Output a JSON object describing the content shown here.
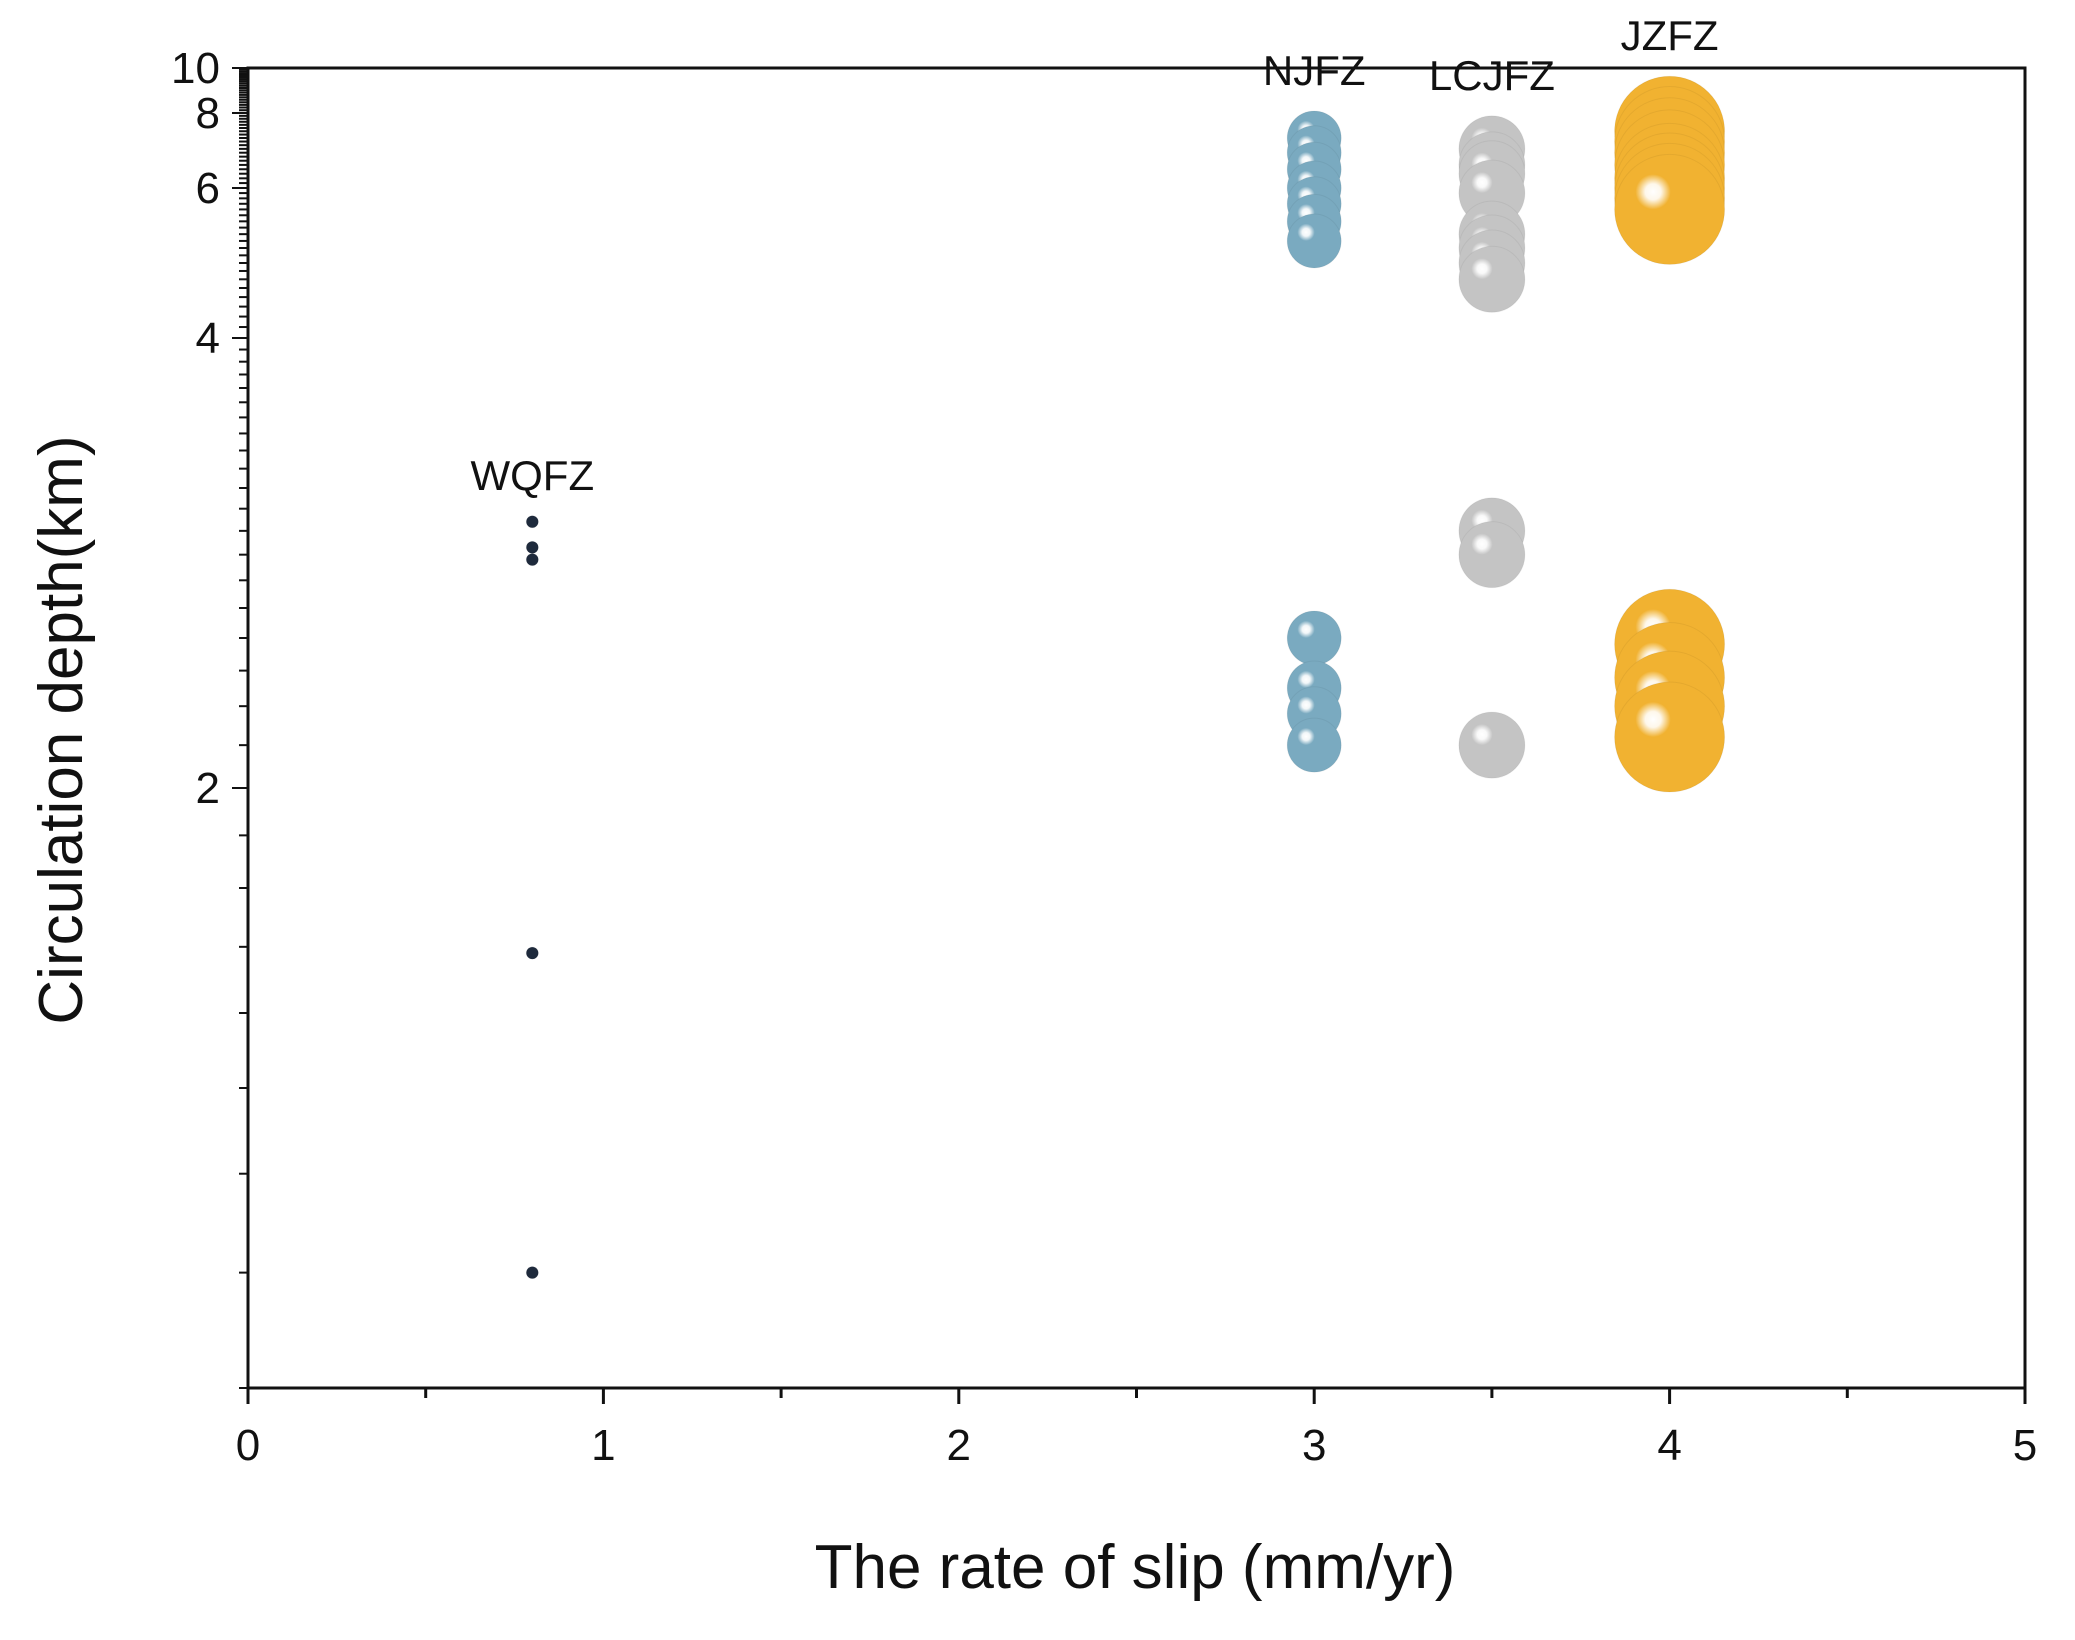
{
  "chart_data": {
    "type": "scatter",
    "title": "",
    "xlabel": "The rate of slip (mm/yr)",
    "ylabel": "Circulation depth(km)",
    "xlim": [
      0,
      5
    ],
    "ylim": [
      1.2,
      10
    ],
    "y_scale": "reciprocal",
    "x_ticks": [
      "0",
      "1",
      "2",
      "3",
      "4",
      "5"
    ],
    "y_ticks": [
      "2",
      "4",
      "6",
      "8",
      "10"
    ],
    "grid": false,
    "series": [
      {
        "name": "WQFZ",
        "color": "#1e2a3c",
        "x": 0.8,
        "values": [
          2.84,
          2.73,
          2.68,
          1.69,
          1.3
        ]
      },
      {
        "name": "NJFZ",
        "color": "#7aaac0",
        "x": 3.0,
        "values": [
          7.2,
          6.8,
          6.4,
          6.0,
          5.7,
          5.4,
          5.1,
          2.4,
          2.25,
          2.18,
          2.1
        ]
      },
      {
        "name": "LCJFZ",
        "color": "#c4c4c4",
        "x": 3.5,
        "values": [
          6.9,
          6.5,
          6.3,
          5.9,
          5.2,
          5.0,
          4.8,
          4.6,
          2.8,
          2.7,
          2.1
        ]
      },
      {
        "name": "JZFZ",
        "color": "#f1b231",
        "x": 4.0,
        "values": [
          7.4,
          7.1,
          6.8,
          6.5,
          6.2,
          6.0,
          5.8,
          5.6,
          2.38,
          2.28,
          2.2,
          2.12
        ]
      }
    ]
  }
}
